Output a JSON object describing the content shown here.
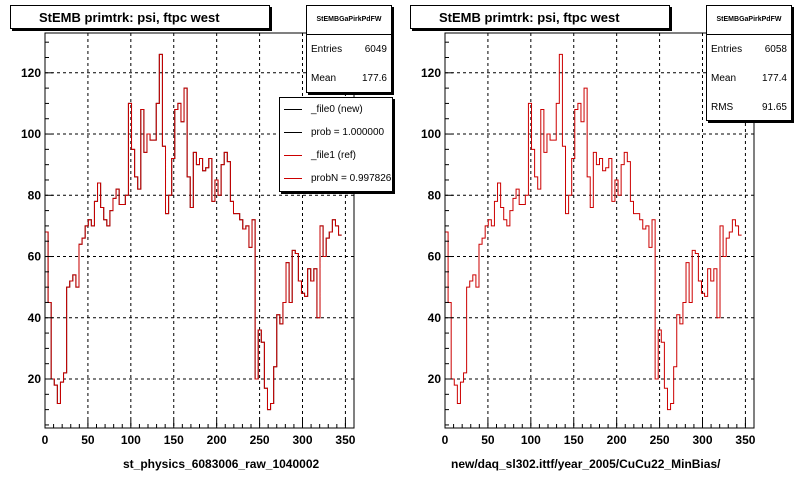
{
  "chart_data": [
    {
      "type": "step",
      "title": "StEMB primtrk: psi, ftpc west",
      "xlabel": "st_physics_6083006_raw_1040002",
      "ylabel": "",
      "xlim": [
        0,
        360
      ],
      "ylim": [
        4,
        133
      ],
      "xticks": [
        0,
        50,
        100,
        150,
        200,
        250,
        300,
        350
      ],
      "yticks": [
        20,
        40,
        60,
        80,
        100,
        120
      ],
      "grid": true,
      "bin_width": 3.6,
      "stats": {
        "title": "StEMBGaPirkPdFW",
        "rows": [
          {
            "label": "Entries",
            "value": "6049"
          },
          {
            "label": "Mean",
            "value": "177.6"
          }
        ]
      },
      "legend": [
        {
          "label": "_file0 (new)",
          "color": "#000000"
        },
        {
          "label": "prob = 1.000000",
          "color": "#000000"
        },
        {
          "label": "_file1 (ref)",
          "color": "#cc0000"
        },
        {
          "label": "probN = 0.997826",
          "color": "#cc0000"
        }
      ],
      "series": [
        {
          "name": "_file0 (new)",
          "color": "#000000",
          "values": [
            68,
            45,
            20,
            18,
            12,
            19,
            22,
            50,
            52,
            54,
            50,
            64,
            66,
            70,
            72,
            70,
            78,
            84,
            76,
            72,
            70,
            75,
            79,
            82,
            77,
            77,
            80,
            110,
            95,
            86,
            82,
            108,
            94,
            100,
            98,
            98,
            110,
            126,
            96,
            74,
            80,
            92,
            108,
            110,
            104,
            115,
            86,
            76,
            94,
            90,
            92,
            88,
            89,
            92,
            78,
            85,
            80,
            90,
            94,
            91,
            78,
            74,
            74,
            72,
            69,
            70,
            63,
            72,
            20,
            36,
            32,
            17,
            10,
            12,
            24,
            41,
            38,
            45,
            58,
            45,
            62,
            61,
            52,
            48,
            47,
            56,
            52,
            56,
            40,
            70,
            60,
            66,
            68,
            72,
            70,
            67
          ]
        },
        {
          "name": "_file1 (ref)",
          "color": "#cc0000",
          "values": [
            68,
            45,
            20,
            18,
            12,
            19,
            22,
            50,
            52,
            54,
            50,
            64,
            66,
            70,
            72,
            70,
            78,
            84,
            76,
            72,
            70,
            75,
            79,
            82,
            77,
            77,
            80,
            110,
            95,
            86,
            82,
            108,
            94,
            100,
            98,
            98,
            110,
            126,
            96,
            74,
            80,
            92,
            108,
            110,
            104,
            115,
            86,
            76,
            94,
            90,
            92,
            88,
            89,
            92,
            78,
            85,
            80,
            90,
            94,
            91,
            78,
            74,
            74,
            72,
            69,
            70,
            63,
            72,
            20,
            36,
            32,
            17,
            10,
            12,
            24,
            41,
            38,
            45,
            58,
            45,
            62,
            61,
            52,
            48,
            47,
            56,
            52,
            56,
            40,
            70,
            60,
            66,
            68,
            72,
            70,
            67
          ]
        }
      ]
    },
    {
      "type": "step",
      "title": "StEMB primtrk: psi, ftpc west",
      "xlabel": "new/daq_sl302.ittf/year_2005/CuCu22_MinBias/",
      "ylabel": "",
      "xlim": [
        0,
        360
      ],
      "ylim": [
        4,
        133
      ],
      "xticks": [
        0,
        50,
        100,
        150,
        200,
        250,
        300,
        350
      ],
      "yticks": [
        20,
        40,
        60,
        80,
        100,
        120
      ],
      "grid": true,
      "bin_width": 3.6,
      "stats": {
        "title": "StEMBGaPirkPdFW",
        "rows": [
          {
            "label": "Entries",
            "value": "6058"
          },
          {
            "label": "Mean",
            "value": "177.4"
          },
          {
            "label": "RMS",
            "value": "91.65"
          }
        ]
      },
      "series": [
        {
          "name": "",
          "color": "#cc0000",
          "values": [
            68,
            45,
            20,
            18,
            12,
            19,
            22,
            50,
            52,
            54,
            50,
            64,
            66,
            70,
            72,
            70,
            78,
            84,
            76,
            72,
            70,
            75,
            79,
            82,
            77,
            77,
            80,
            110,
            95,
            86,
            82,
            108,
            94,
            100,
            98,
            98,
            110,
            126,
            96,
            74,
            80,
            92,
            108,
            110,
            104,
            115,
            86,
            76,
            94,
            90,
            92,
            88,
            89,
            92,
            78,
            85,
            80,
            90,
            94,
            91,
            78,
            74,
            74,
            72,
            69,
            70,
            63,
            72,
            20,
            36,
            32,
            17,
            10,
            12,
            24,
            41,
            38,
            45,
            58,
            45,
            62,
            61,
            52,
            48,
            47,
            56,
            52,
            56,
            40,
            70,
            60,
            66,
            68,
            72,
            70,
            67
          ]
        }
      ]
    }
  ]
}
